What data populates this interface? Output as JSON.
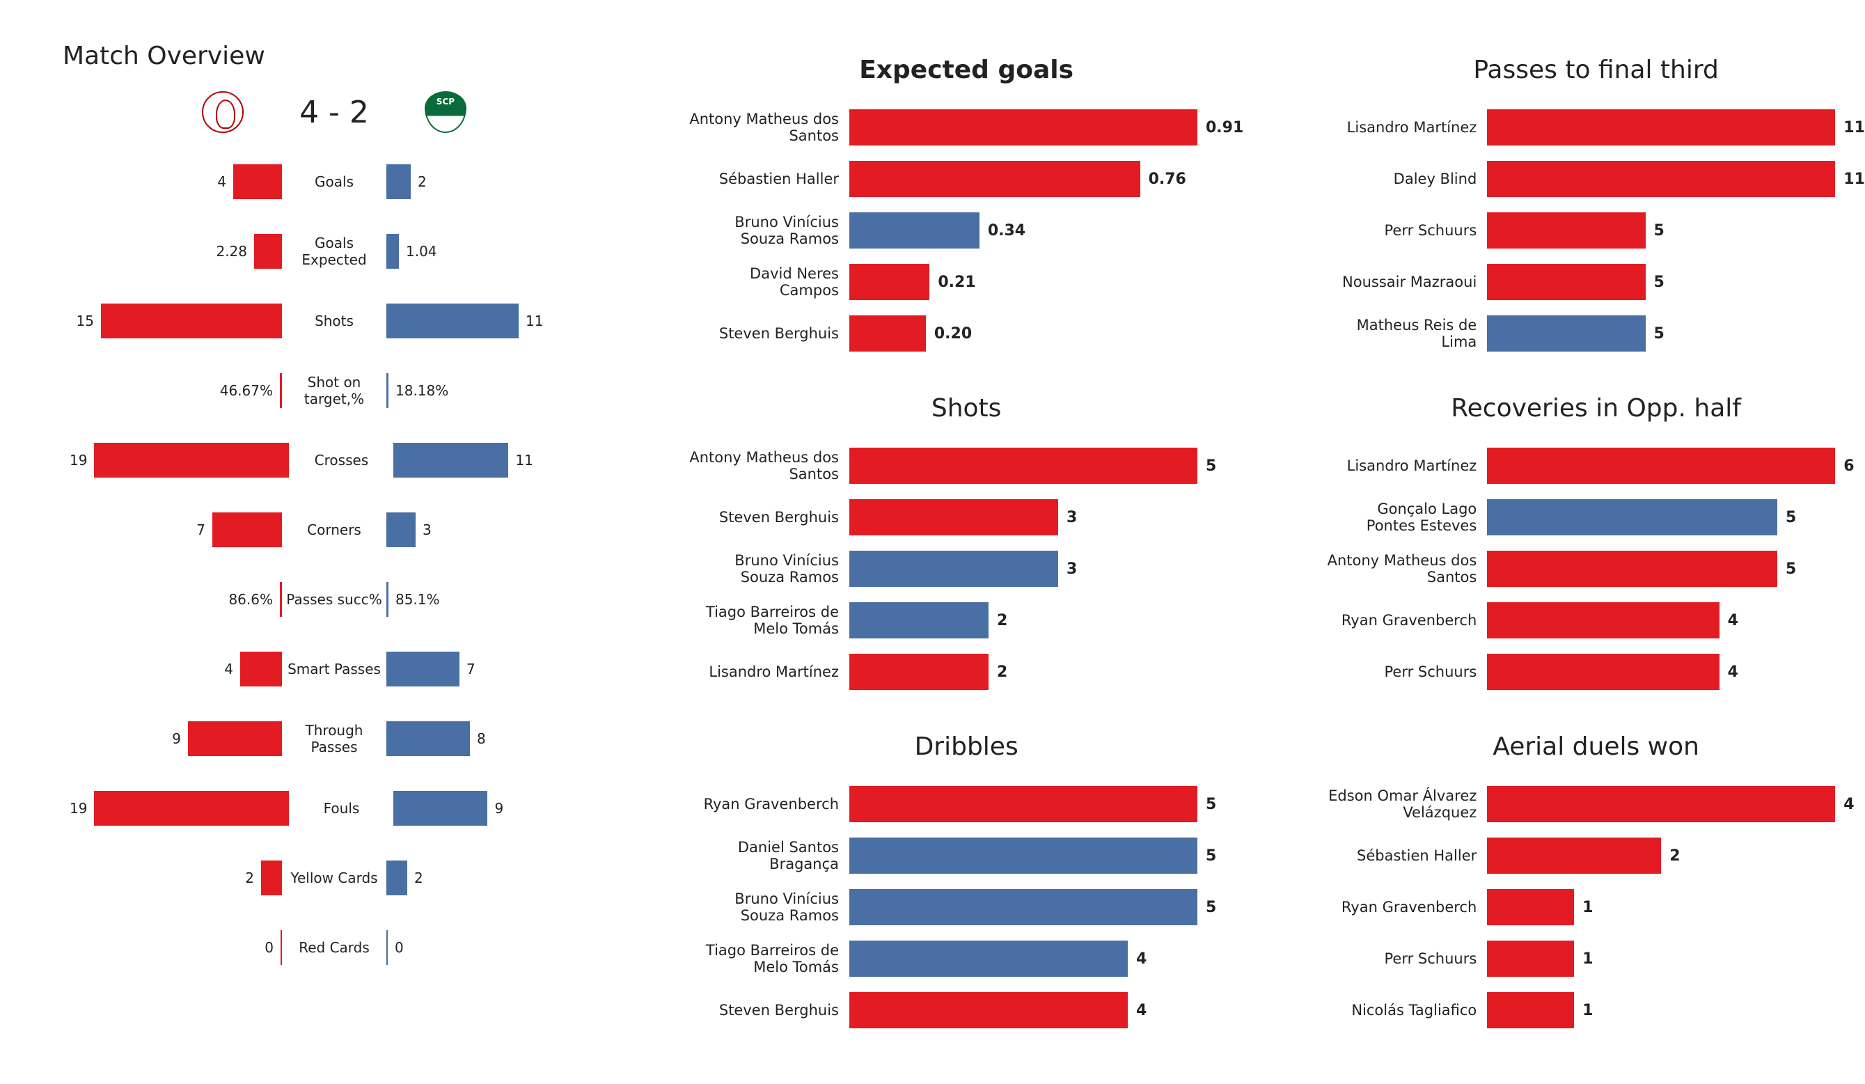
{
  "colors": {
    "teamA": "#e31b23",
    "teamB": "#4a6fa5",
    "text": "#222222",
    "bg": "#ffffff"
  },
  "overview": {
    "title": "Match Overview",
    "score": "4 - 2",
    "maxBarPx": 280,
    "rows": [
      {
        "label": "Goals",
        "a": "4",
        "b": "2",
        "aw": 70,
        "bw": 35
      },
      {
        "label": "Goals Expected",
        "a": "2.28",
        "b": "1.04",
        "aw": 40,
        "bw": 18
      },
      {
        "label": "Shots",
        "a": "15",
        "b": "11",
        "aw": 260,
        "bw": 190
      },
      {
        "label": "Shot on target,%",
        "a": "46.67%",
        "b": "18.18%",
        "aw": 4,
        "bw": 4,
        "thin": true
      },
      {
        "label": "Crosses",
        "a": "19",
        "b": "11",
        "aw": 280,
        "bw": 165
      },
      {
        "label": "Corners",
        "a": "7",
        "b": "3",
        "aw": 100,
        "bw": 42
      },
      {
        "label": "Passes succ%",
        "a": "86.6%",
        "b": "85.1%",
        "aw": 4,
        "bw": 4,
        "thin": true
      },
      {
        "label": "Smart Passes",
        "a": "4",
        "b": "7",
        "aw": 60,
        "bw": 105
      },
      {
        "label": "Through Passes",
        "a": "9",
        "b": "8",
        "aw": 135,
        "bw": 120
      },
      {
        "label": "Fouls",
        "a": "19",
        "b": "9",
        "aw": 280,
        "bw": 135
      },
      {
        "label": "Yellow Cards",
        "a": "2",
        "b": "2",
        "aw": 30,
        "bw": 30
      },
      {
        "label": "Red Cards",
        "a": "0",
        "b": "0",
        "aw": 2,
        "bw": 2
      }
    ]
  },
  "playerCharts": {
    "barMaxPx": 500,
    "charts": [
      {
        "id": "xg",
        "col": 1,
        "title": "Expected goals",
        "titleBold": true,
        "max": 0.91,
        "rows": [
          {
            "name": "Antony Matheus dos Santos",
            "val": "0.91",
            "num": 0.91,
            "team": "A"
          },
          {
            "name": "Sébastien Haller",
            "val": "0.76",
            "num": 0.76,
            "team": "A"
          },
          {
            "name": "Bruno Vinícius Souza Ramos",
            "val": "0.34",
            "num": 0.34,
            "team": "B"
          },
          {
            "name": "David Neres Campos",
            "val": "0.21",
            "num": 0.21,
            "team": "A"
          },
          {
            "name": "Steven Berghuis",
            "val": "0.20",
            "num": 0.2,
            "team": "A"
          }
        ]
      },
      {
        "id": "shots",
        "col": 1,
        "title": "Shots",
        "titleBold": false,
        "max": 5,
        "rows": [
          {
            "name": "Antony Matheus dos Santos",
            "val": "5",
            "num": 5,
            "team": "A"
          },
          {
            "name": "Steven Berghuis",
            "val": "3",
            "num": 3,
            "team": "A"
          },
          {
            "name": "Bruno Vinícius Souza Ramos",
            "val": "3",
            "num": 3,
            "team": "B"
          },
          {
            "name": "Tiago Barreiros de Melo Tomás",
            "val": "2",
            "num": 2,
            "team": "B"
          },
          {
            "name": "Lisandro Martínez",
            "val": "2",
            "num": 2,
            "team": "A"
          }
        ]
      },
      {
        "id": "dribbles",
        "col": 1,
        "title": "Dribbles",
        "titleBold": false,
        "max": 5,
        "rows": [
          {
            "name": "Ryan Gravenberch",
            "val": "5",
            "num": 5,
            "team": "A"
          },
          {
            "name": "Daniel Santos Bragança",
            "val": "5",
            "num": 5,
            "team": "B"
          },
          {
            "name": "Bruno Vinícius Souza Ramos",
            "val": "5",
            "num": 5,
            "team": "B"
          },
          {
            "name": "Tiago Barreiros de Melo Tomás",
            "val": "4",
            "num": 4,
            "team": "B"
          },
          {
            "name": "Steven Berghuis",
            "val": "4",
            "num": 4,
            "team": "A"
          }
        ]
      },
      {
        "id": "p3",
        "col": 2,
        "title": "Passes to final third",
        "titleBold": false,
        "max": 11,
        "rows": [
          {
            "name": "Lisandro Martínez",
            "val": "11",
            "num": 11,
            "team": "A"
          },
          {
            "name": "Daley Blind",
            "val": "11",
            "num": 11,
            "team": "A"
          },
          {
            "name": "Perr Schuurs",
            "val": "5",
            "num": 5,
            "team": "A"
          },
          {
            "name": "Noussair Mazraoui",
            "val": "5",
            "num": 5,
            "team": "A"
          },
          {
            "name": "Matheus Reis de Lima",
            "val": "5",
            "num": 5,
            "team": "B"
          }
        ]
      },
      {
        "id": "rec",
        "col": 2,
        "title": "Recoveries in Opp. half",
        "titleBold": false,
        "max": 6,
        "rows": [
          {
            "name": "Lisandro Martínez",
            "val": "6",
            "num": 6,
            "team": "A"
          },
          {
            "name": "Gonçalo Lago Pontes Esteves",
            "val": "5",
            "num": 5,
            "team": "B"
          },
          {
            "name": "Antony Matheus dos Santos",
            "val": "5",
            "num": 5,
            "team": "A"
          },
          {
            "name": "Ryan Gravenberch",
            "val": "4",
            "num": 4,
            "team": "A"
          },
          {
            "name": "Perr Schuurs",
            "val": "4",
            "num": 4,
            "team": "A"
          }
        ]
      },
      {
        "id": "aer",
        "col": 2,
        "title": "Aerial duels won",
        "titleBold": false,
        "max": 4,
        "rows": [
          {
            "name": "Edson Omar Álvarez Velázquez",
            "val": "4",
            "num": 4,
            "team": "A"
          },
          {
            "name": "Sébastien Haller",
            "val": "2",
            "num": 2,
            "team": "A"
          },
          {
            "name": "Ryan Gravenberch",
            "val": "1",
            "num": 1,
            "team": "A"
          },
          {
            "name": "Perr Schuurs",
            "val": "1",
            "num": 1,
            "team": "A"
          },
          {
            "name": "Nicolás Tagliafico",
            "val": "1",
            "num": 1,
            "team": "A"
          }
        ]
      }
    ]
  }
}
